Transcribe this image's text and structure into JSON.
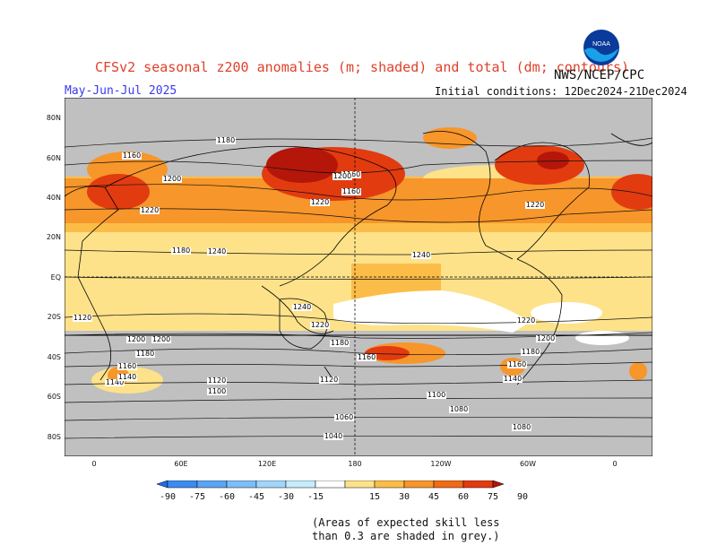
{
  "header": {
    "title": "CFSv2 seasonal z200 anomalies (m; shaded) and total (dm; contours)",
    "period": "May-Jun-Jul 2025",
    "initial_conditions": "Initial conditions: 12Dec2024-21Dec2024",
    "agency": "NWS/NCEP/CPC",
    "logo_text": "NOAA"
  },
  "map": {
    "lat_labels": [
      "80N",
      "60N",
      "40N",
      "20N",
      "EQ",
      "20S",
      "40S",
      "60S",
      "80S"
    ],
    "lon_labels": [
      "0",
      "60E",
      "120E",
      "180",
      "120W",
      "60W",
      "0"
    ],
    "contour_labels": [
      "1180",
      "1160",
      "1200",
      "1220",
      "1160",
      "1160",
      "1200",
      "1220",
      "1180",
      "1240",
      "1240",
      "1240",
      "1220",
      "1200",
      "1180",
      "1160",
      "1140",
      "1220",
      "1200",
      "1180",
      "1160",
      "1140",
      "1120",
      "1100",
      "1160",
      "1140",
      "1120",
      "1100",
      "1080",
      "1060",
      "1040",
      "1080",
      "1120",
      "1200",
      "1180",
      "1220"
    ]
  },
  "colorbar": {
    "labels": [
      "-90",
      "-75",
      "-60",
      "-45",
      "-30",
      "-15",
      "15",
      "30",
      "45",
      "60",
      "75",
      "90"
    ],
    "colors": [
      "#1e6ee6",
      "#3c8cf0",
      "#5aa5f5",
      "#7dbef8",
      "#a0d6fb",
      "#c6ecfd",
      "#ffffff",
      "#fde28a",
      "#fbbd48",
      "#f7962a",
      "#f26a16",
      "#e23b10",
      "#b4160a"
    ]
  },
  "footnote": {
    "line1": "(Areas of expected skill less",
    "line2": "than 0.3 are shaded in grey.)"
  }
}
